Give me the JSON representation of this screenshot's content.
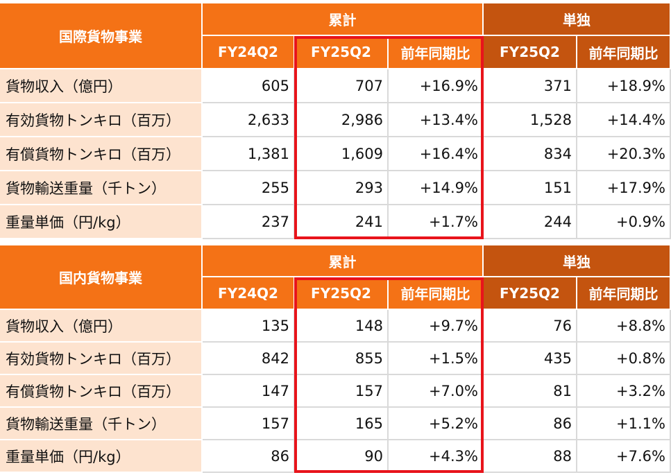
{
  "tables": [
    {
      "title": "国際貨物事業",
      "groups": [
        "累計",
        "単独"
      ],
      "columns": [
        "FY24Q2",
        "FY25Q2",
        "前年同期比",
        "FY25Q2",
        "前年同期比"
      ],
      "rows": [
        [
          "貨物収入（億円）",
          "605",
          "707",
          "+16.9%",
          "371",
          "+18.9%"
        ],
        [
          "有効貨物トンキロ（百万）",
          "2,633",
          "2,986",
          "+13.4%",
          "1,528",
          "+14.4%"
        ],
        [
          "有償貨物トンキロ（百万）",
          "1,381",
          "1,609",
          "+16.4%",
          "834",
          "+20.3%"
        ],
        [
          "貨物輸送重量（千トン）",
          "255",
          "293",
          "+14.9%",
          "151",
          "+17.9%"
        ],
        [
          "重量単価（円/kg）",
          "237",
          "241",
          "+1.7%",
          "244",
          "+0.9%"
        ]
      ]
    },
    {
      "title": "国内貨物事業",
      "groups": [
        "累計",
        "単独"
      ],
      "columns": [
        "FY24Q2",
        "FY25Q2",
        "前年同期比",
        "FY25Q2",
        "前年同期比"
      ],
      "rows": [
        [
          "貨物収入（億円）",
          "135",
          "148",
          "+9.7%",
          "76",
          "+8.8%"
        ],
        [
          "有効貨物トンキロ（百万）",
          "842",
          "855",
          "+1.5%",
          "435",
          "+0.8%"
        ],
        [
          "有償貨物トンキロ（百万）",
          "147",
          "157",
          "+7.0%",
          "81",
          "+3.2%"
        ],
        [
          "貨物輸送重量（千トン）",
          "157",
          "165",
          "+5.2%",
          "86",
          "+1.1%"
        ],
        [
          "重量単価（円/kg）",
          "86",
          "90",
          "+4.3%",
          "88",
          "+7.6%"
        ]
      ]
    }
  ]
}
